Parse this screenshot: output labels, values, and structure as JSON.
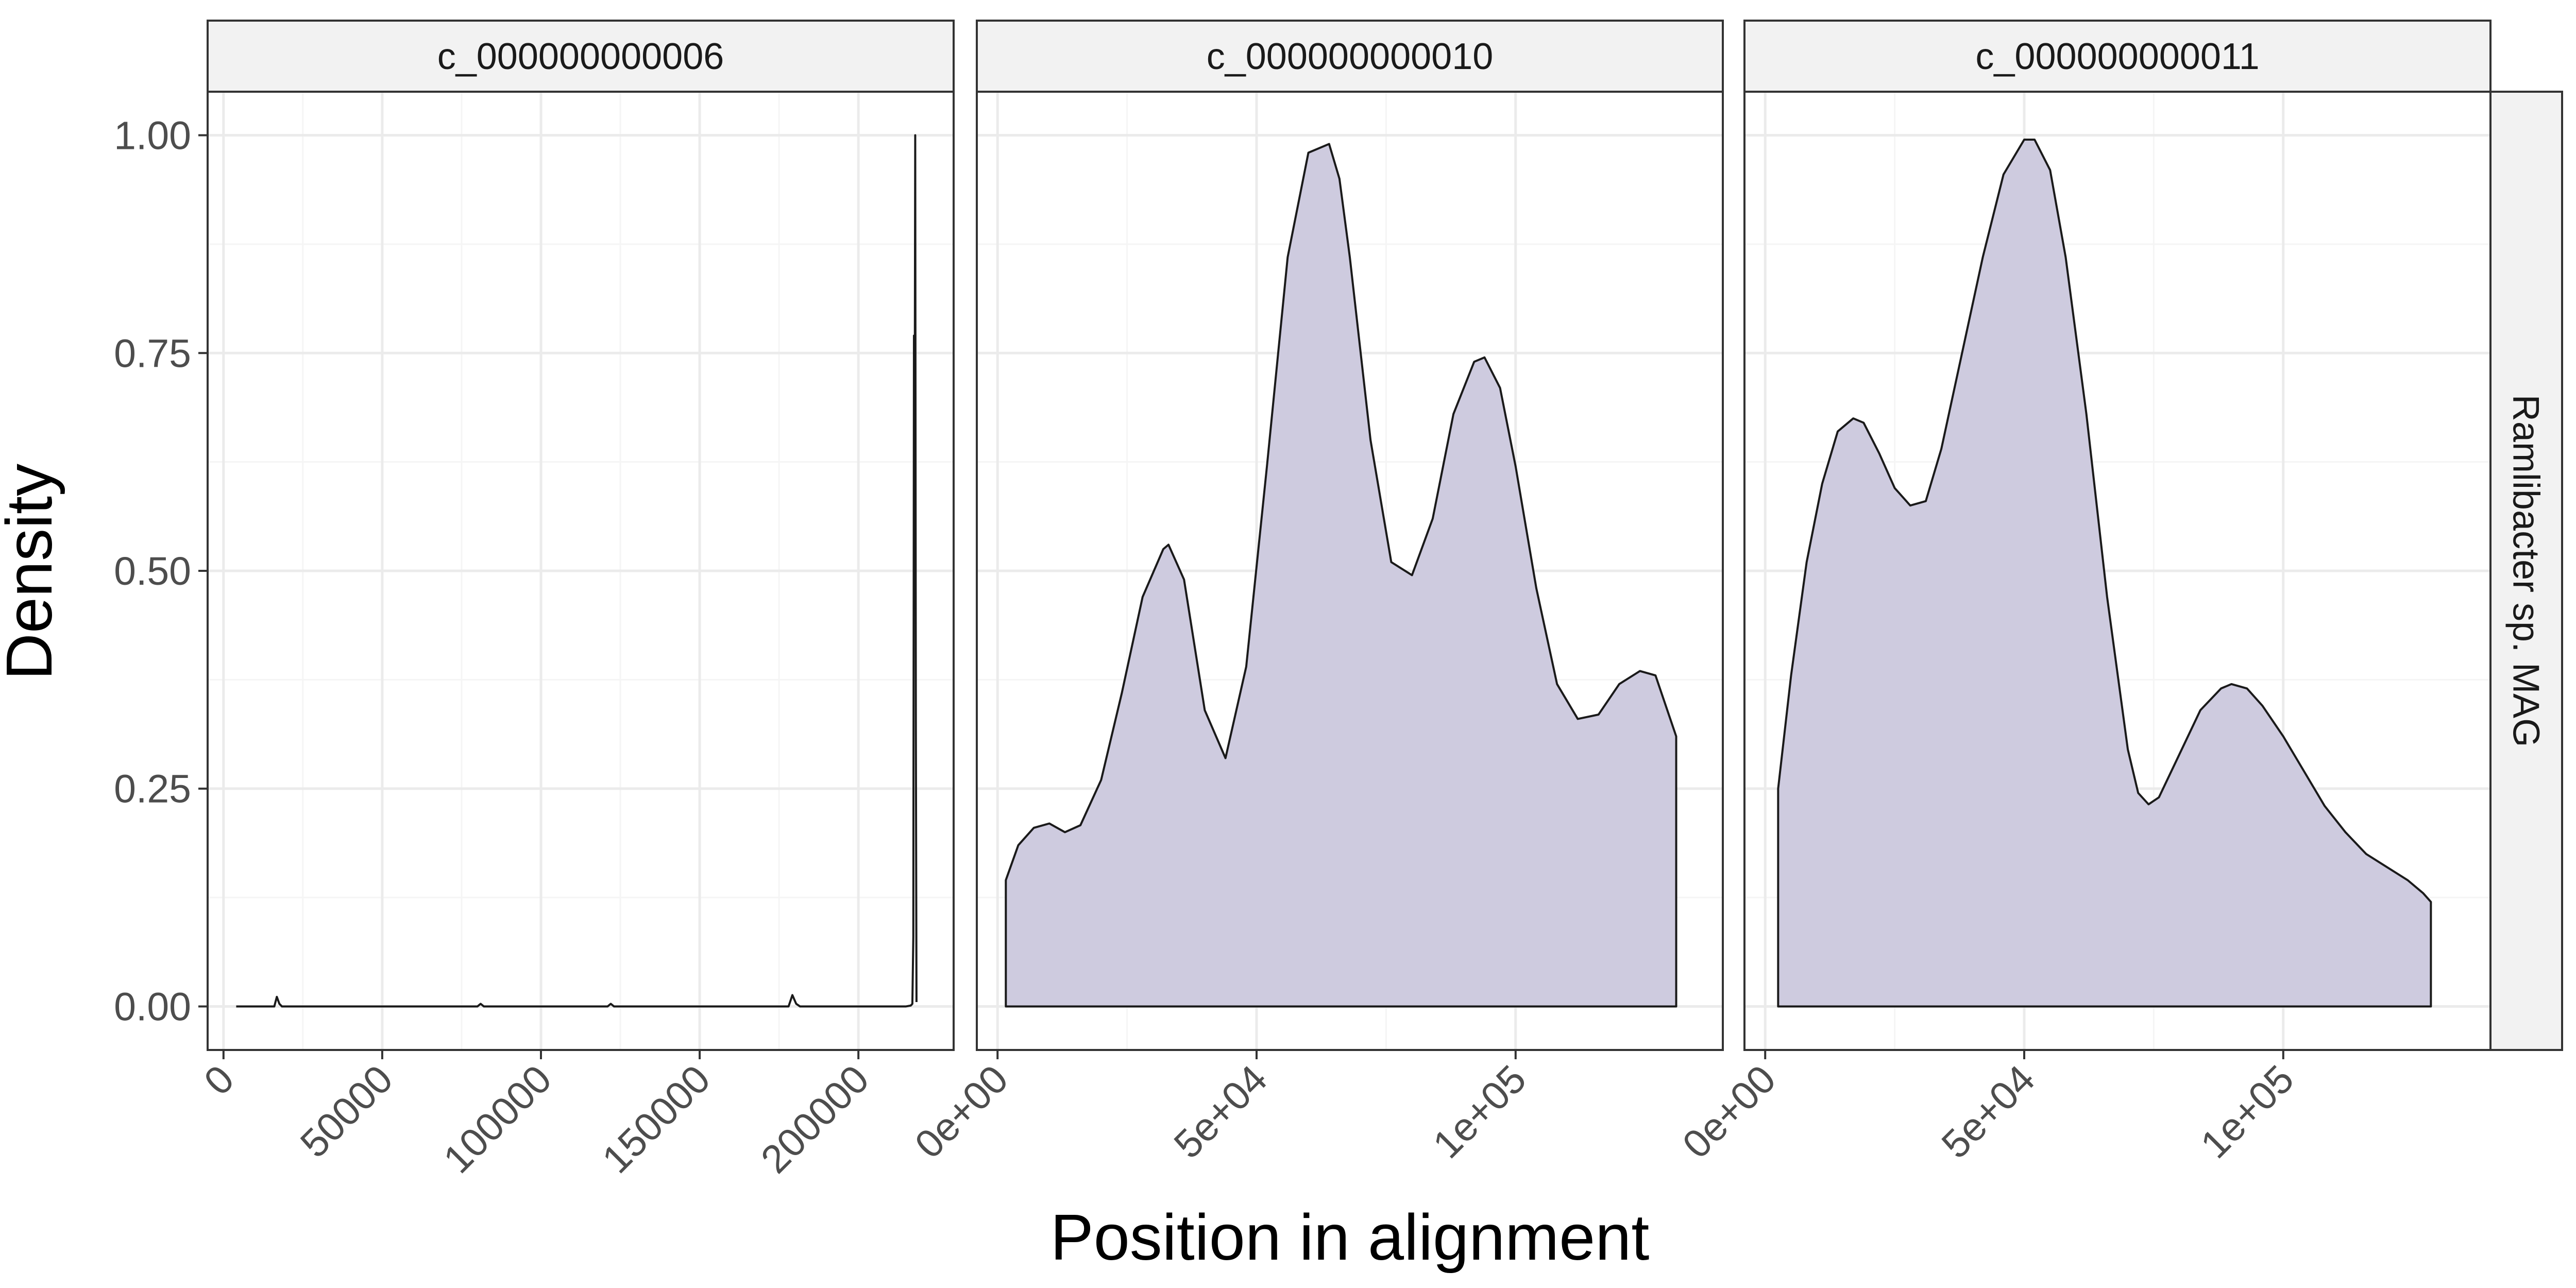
{
  "chart_data": {
    "type": "area",
    "title": "",
    "xlabel": "Position in alignment",
    "ylabel": "Density",
    "row_strip": "Ramlibacter sp. MAG",
    "fill_color": "#cecbdf",
    "line_color": "#1a1a1a",
    "panel_border_color": "#333333",
    "grid_major_color": "#ebebeb",
    "grid_minor_color": "#f5f5f5",
    "strip_bg_color": "#f2f2f2",
    "grid": true,
    "legend": "none",
    "y_ticks": [
      {
        "value": 0,
        "label": "0.00"
      },
      {
        "value": 0.25,
        "label": "0.25"
      },
      {
        "value": 0.5,
        "label": "0.50"
      },
      {
        "value": 0.75,
        "label": "0.75"
      },
      {
        "value": 1.0,
        "label": "1.00"
      }
    ],
    "ylim": [
      -0.05,
      1.05
    ],
    "panels": [
      {
        "strip": "c_000000000006",
        "xlim": [
          -5000,
          230000
        ],
        "x_ticks": [
          {
            "value": 0,
            "label": "0"
          },
          {
            "value": 50000,
            "label": "50000"
          },
          {
            "value": 100000,
            "label": "100000"
          },
          {
            "value": 150000,
            "label": "150000"
          },
          {
            "value": 200000,
            "label": "200000"
          }
        ],
        "filled": false,
        "x": [
          4000,
          16000,
          16800,
          17600,
          18400,
          40000,
          60000,
          80000,
          81000,
          82000,
          100000,
          121000,
          122000,
          123000,
          150000,
          178000,
          179200,
          180400,
          181600,
          190000,
          200000,
          210000,
          215000,
          216500,
          217000,
          217300,
          217500,
          217700,
          217900,
          218100,
          218300
        ],
        "y": [
          0,
          0,
          0.011,
          0.003,
          0,
          0,
          0,
          0,
          0.003,
          0,
          0,
          0,
          0.003,
          0,
          0,
          0,
          0.013,
          0.003,
          0,
          0,
          0,
          0,
          0,
          0.001,
          0.003,
          0.08,
          0.77,
          0.6,
          1.0,
          0.32,
          0.005
        ]
      },
      {
        "strip": "c_000000000010",
        "xlim": [
          -4000,
          140000
        ],
        "x_ticks": [
          {
            "value": 0,
            "label": "0e+00"
          },
          {
            "value": 50000,
            "label": "5e+04"
          },
          {
            "value": 100000,
            "label": "1e+05"
          }
        ],
        "filled": true,
        "x": [
          1600,
          4000,
          7000,
          10000,
          13000,
          16000,
          20000,
          24000,
          28000,
          32000,
          33000,
          36000,
          40000,
          44000,
          48000,
          52000,
          56000,
          60000,
          64000,
          66000,
          68000,
          72000,
          76000,
          80000,
          84000,
          88000,
          92000,
          94000,
          97000,
          100000,
          104000,
          108000,
          112000,
          116000,
          120000,
          124000,
          127000,
          131000
        ],
        "y": [
          0.145,
          0.185,
          0.205,
          0.21,
          0.2,
          0.208,
          0.26,
          0.36,
          0.47,
          0.525,
          0.53,
          0.49,
          0.34,
          0.285,
          0.39,
          0.62,
          0.86,
          0.98,
          0.99,
          0.95,
          0.86,
          0.65,
          0.51,
          0.495,
          0.56,
          0.68,
          0.74,
          0.745,
          0.71,
          0.62,
          0.48,
          0.37,
          0.33,
          0.335,
          0.37,
          0.385,
          0.38,
          0.31
        ]
      },
      {
        "strip": "c_000000000011",
        "xlim": [
          -4000,
          140000
        ],
        "x_ticks": [
          {
            "value": 0,
            "label": "0e+00"
          },
          {
            "value": 50000,
            "label": "5e+04"
          },
          {
            "value": 100000,
            "label": "1e+05"
          }
        ],
        "filled": true,
        "x": [
          2500,
          5000,
          8000,
          11000,
          14000,
          17000,
          19000,
          22000,
          25000,
          28000,
          31000,
          34000,
          38000,
          42000,
          46000,
          50000,
          52000,
          55000,
          58000,
          62000,
          66000,
          70000,
          72000,
          74000,
          76000,
          80000,
          84000,
          88000,
          90000,
          93000,
          96000,
          100000,
          104000,
          108000,
          112000,
          116000,
          120000,
          124000,
          127000,
          128500
        ],
        "y": [
          0.25,
          0.38,
          0.51,
          0.6,
          0.66,
          0.675,
          0.67,
          0.635,
          0.595,
          0.575,
          0.58,
          0.64,
          0.75,
          0.86,
          0.955,
          0.995,
          0.995,
          0.96,
          0.86,
          0.68,
          0.47,
          0.295,
          0.245,
          0.232,
          0.24,
          0.29,
          0.34,
          0.365,
          0.37,
          0.365,
          0.345,
          0.31,
          0.27,
          0.23,
          0.2,
          0.175,
          0.16,
          0.145,
          0.13,
          0.12
        ]
      }
    ]
  }
}
